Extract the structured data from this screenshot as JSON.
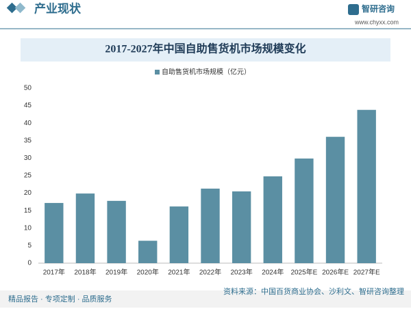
{
  "header": {
    "section": "产业现状",
    "brand": "智研咨询",
    "website": "www.chyxx.com"
  },
  "chart_data": {
    "type": "bar",
    "title": "2017-2027年中国自助售货机市场规模变化",
    "categories": [
      "2017年",
      "2018年",
      "2019年",
      "2020年",
      "2021年",
      "2022年",
      "2023年",
      "2024年",
      "2025年E",
      "2026年E",
      "2027年E"
    ],
    "series": [
      {
        "name": "自助售货机市场规模（亿元）",
        "color": "#5b8fa3",
        "values": [
          17.2,
          19.9,
          17.8,
          6.4,
          16.2,
          21.3,
          20.5,
          24.8,
          29.9,
          36.1,
          43.8
        ]
      }
    ],
    "ylim": [
      0,
      50
    ],
    "yticks": [
      0,
      5,
      10,
      15,
      20,
      25,
      30,
      35,
      40,
      45,
      50
    ]
  },
  "footer": {
    "slogan": "精品报告 · 专项定制 · 品质服务",
    "source": "资料来源：中国百货商业协会、沙利文、智研咨询整理"
  }
}
